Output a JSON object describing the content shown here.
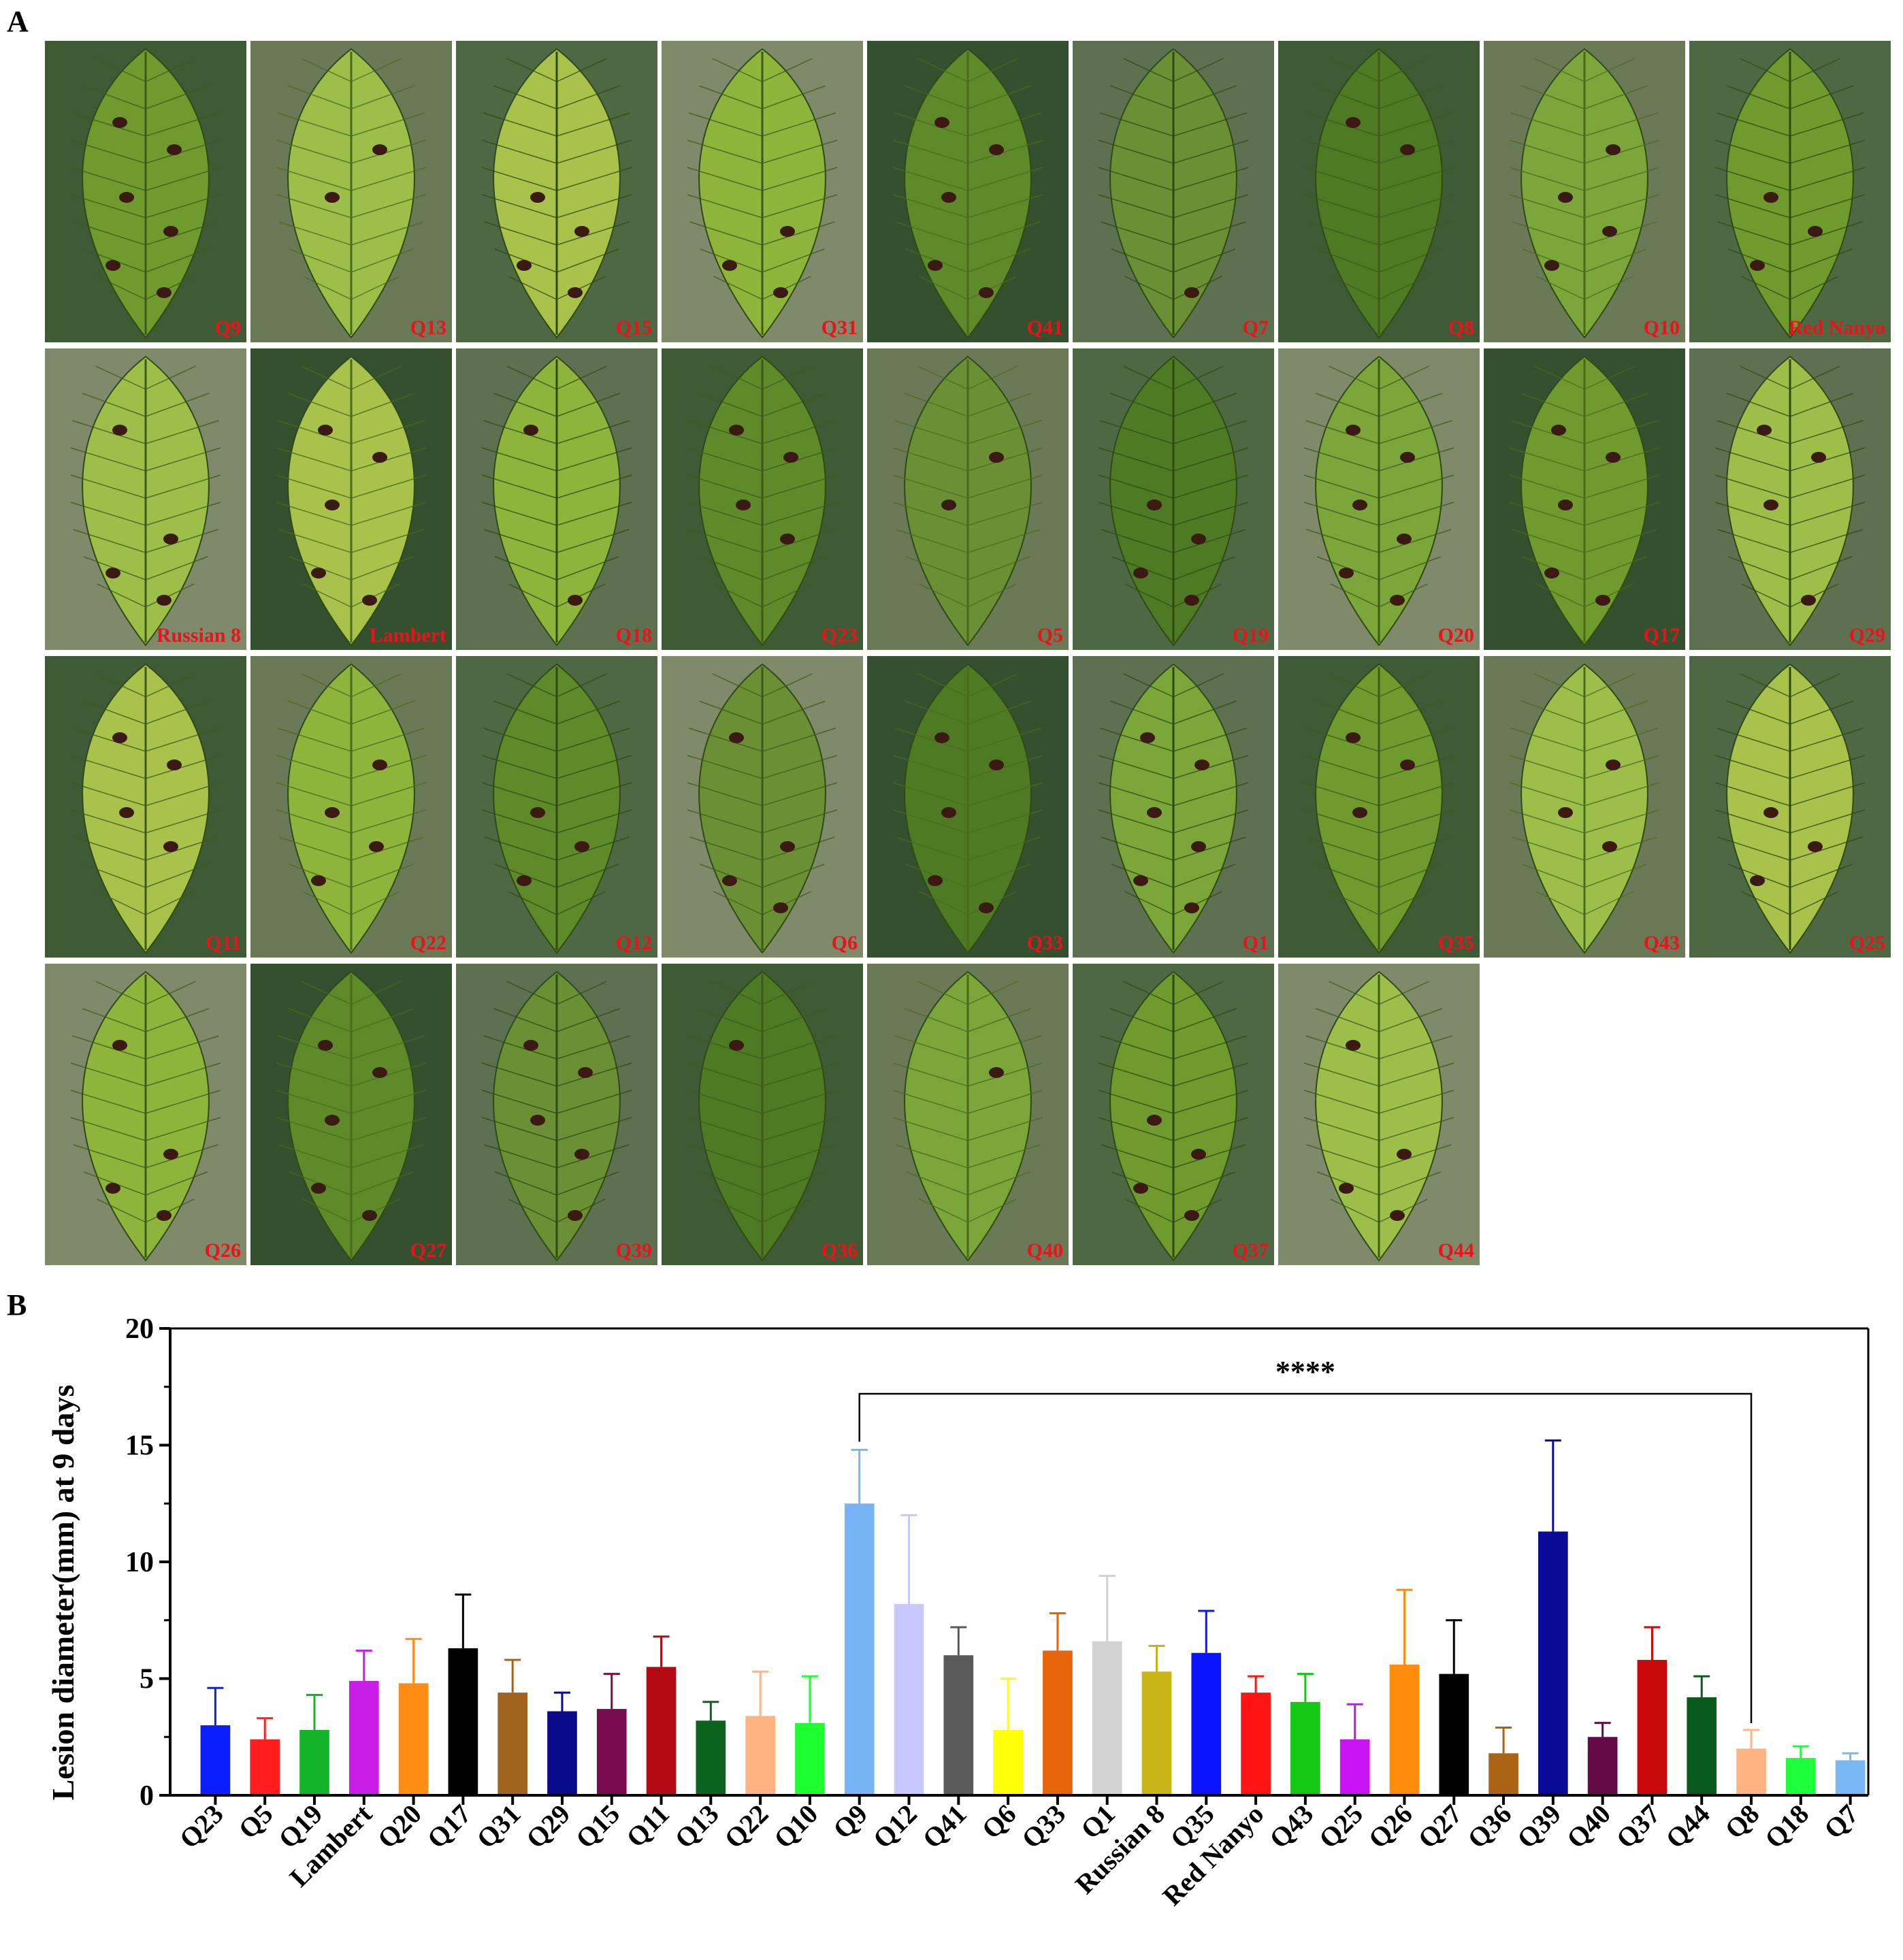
{
  "panels": {
    "a": "A",
    "b": "B"
  },
  "leaf_photos": [
    {
      "label": "Q9",
      "spots": 6
    },
    {
      "label": "Q13",
      "spots": 2
    },
    {
      "label": "Q15",
      "spots": 4
    },
    {
      "label": "Q31",
      "spots": 3
    },
    {
      "label": "Q41",
      "spots": 5
    },
    {
      "label": "Q7",
      "spots": 1
    },
    {
      "label": "Q8",
      "spots": 2
    },
    {
      "label": "Q10",
      "spots": 4
    },
    {
      "label": "Red Nanyo",
      "spots": 3
    },
    {
      "label": "Russian 8",
      "spots": 4
    },
    {
      "label": "Lambert",
      "spots": 5
    },
    {
      "label": "Q18",
      "spots": 2
    },
    {
      "label": "Q23",
      "spots": 4
    },
    {
      "label": "Q5",
      "spots": 2
    },
    {
      "label": "Q19",
      "spots": 4
    },
    {
      "label": "Q20",
      "spots": 6
    },
    {
      "label": "Q17",
      "spots": 5
    },
    {
      "label": "Q29",
      "spots": 4
    },
    {
      "label": "Q11",
      "spots": 4
    },
    {
      "label": "Q22",
      "spots": 4
    },
    {
      "label": "Q12",
      "spots": 3
    },
    {
      "label": "Q6",
      "spots": 4
    },
    {
      "label": "Q33",
      "spots": 5
    },
    {
      "label": "Q1",
      "spots": 6
    },
    {
      "label": "Q35",
      "spots": 3
    },
    {
      "label": "Q43",
      "spots": 3
    },
    {
      "label": "Q25",
      "spots": 3
    },
    {
      "label": "Q26",
      "spots": 4
    },
    {
      "label": "Q27",
      "spots": 5
    },
    {
      "label": "Q39",
      "spots": 5
    },
    {
      "label": "Q36",
      "spots": 1
    },
    {
      "label": "Q40",
      "spots": 1
    },
    {
      "label": "Q37",
      "spots": 4
    },
    {
      "label": "Q44",
      "spots": 4
    }
  ],
  "chart_data": {
    "type": "bar",
    "ylabel": "Lesion diameter(mm) at 9 days",
    "xlabel": "",
    "ylim": [
      0,
      20
    ],
    "yticks": [
      "0",
      "5",
      "10",
      "15",
      "20"
    ],
    "categories": [
      "Q23",
      "Q5",
      "Q19",
      "Lambert",
      "Q20",
      "Q17",
      "Q31",
      "Q29",
      "Q15",
      "Q11",
      "Q13",
      "Q22",
      "Q10",
      "Q9",
      "Q12",
      "Q41",
      "Q6",
      "Q33",
      "Q1",
      "Russian 8",
      "Q35",
      "Red Nanyo",
      "Q43",
      "Q25",
      "Q26",
      "Q27",
      "Q36",
      "Q39",
      "Q40",
      "Q37",
      "Q44",
      "Q8",
      "Q18",
      "Q7"
    ],
    "values": [
      3.0,
      2.4,
      2.8,
      4.9,
      4.8,
      6.3,
      4.4,
      3.6,
      3.7,
      5.5,
      3.2,
      3.4,
      3.1,
      12.5,
      8.2,
      6.0,
      2.8,
      6.2,
      6.6,
      5.3,
      6.1,
      4.4,
      4.0,
      2.4,
      5.6,
      5.2,
      1.8,
      11.3,
      2.5,
      5.8,
      4.2,
      2.0,
      1.6,
      1.5
    ],
    "errors": [
      1.6,
      0.9,
      1.5,
      1.3,
      1.9,
      2.3,
      1.4,
      0.8,
      1.5,
      1.3,
      0.8,
      1.9,
      2.0,
      2.3,
      3.8,
      1.2,
      2.2,
      1.6,
      2.8,
      1.1,
      1.8,
      0.7,
      1.2,
      1.5,
      3.2,
      2.3,
      1.1,
      3.9,
      0.6,
      1.4,
      0.9,
      0.8,
      0.5,
      0.3
    ],
    "colors": [
      "#0a1eff",
      "#ff1e1e",
      "#14b428",
      "#c81ee6",
      "#ff8c14",
      "#000000",
      "#a0641e",
      "#0a0a8c",
      "#780a50",
      "#b40a14",
      "#0a641e",
      "#ffb482",
      "#1eff32",
      "#78b4f5",
      "#c8c8ff",
      "#5a5a5a",
      "#ffff0a",
      "#e6640a",
      "#d2d2d2",
      "#c8b414",
      "#0a14ff",
      "#ff1414",
      "#14c814",
      "#c814f5",
      "#ff8c0a",
      "#000000",
      "#aa6414",
      "#0a0a96",
      "#640a46",
      "#c80a0a",
      "#0a5a1e",
      "#ffb482",
      "#1eff3c",
      "#7ab8f5"
    ],
    "significance": {
      "label": "****",
      "from": "Q9",
      "to": "Q8"
    }
  }
}
